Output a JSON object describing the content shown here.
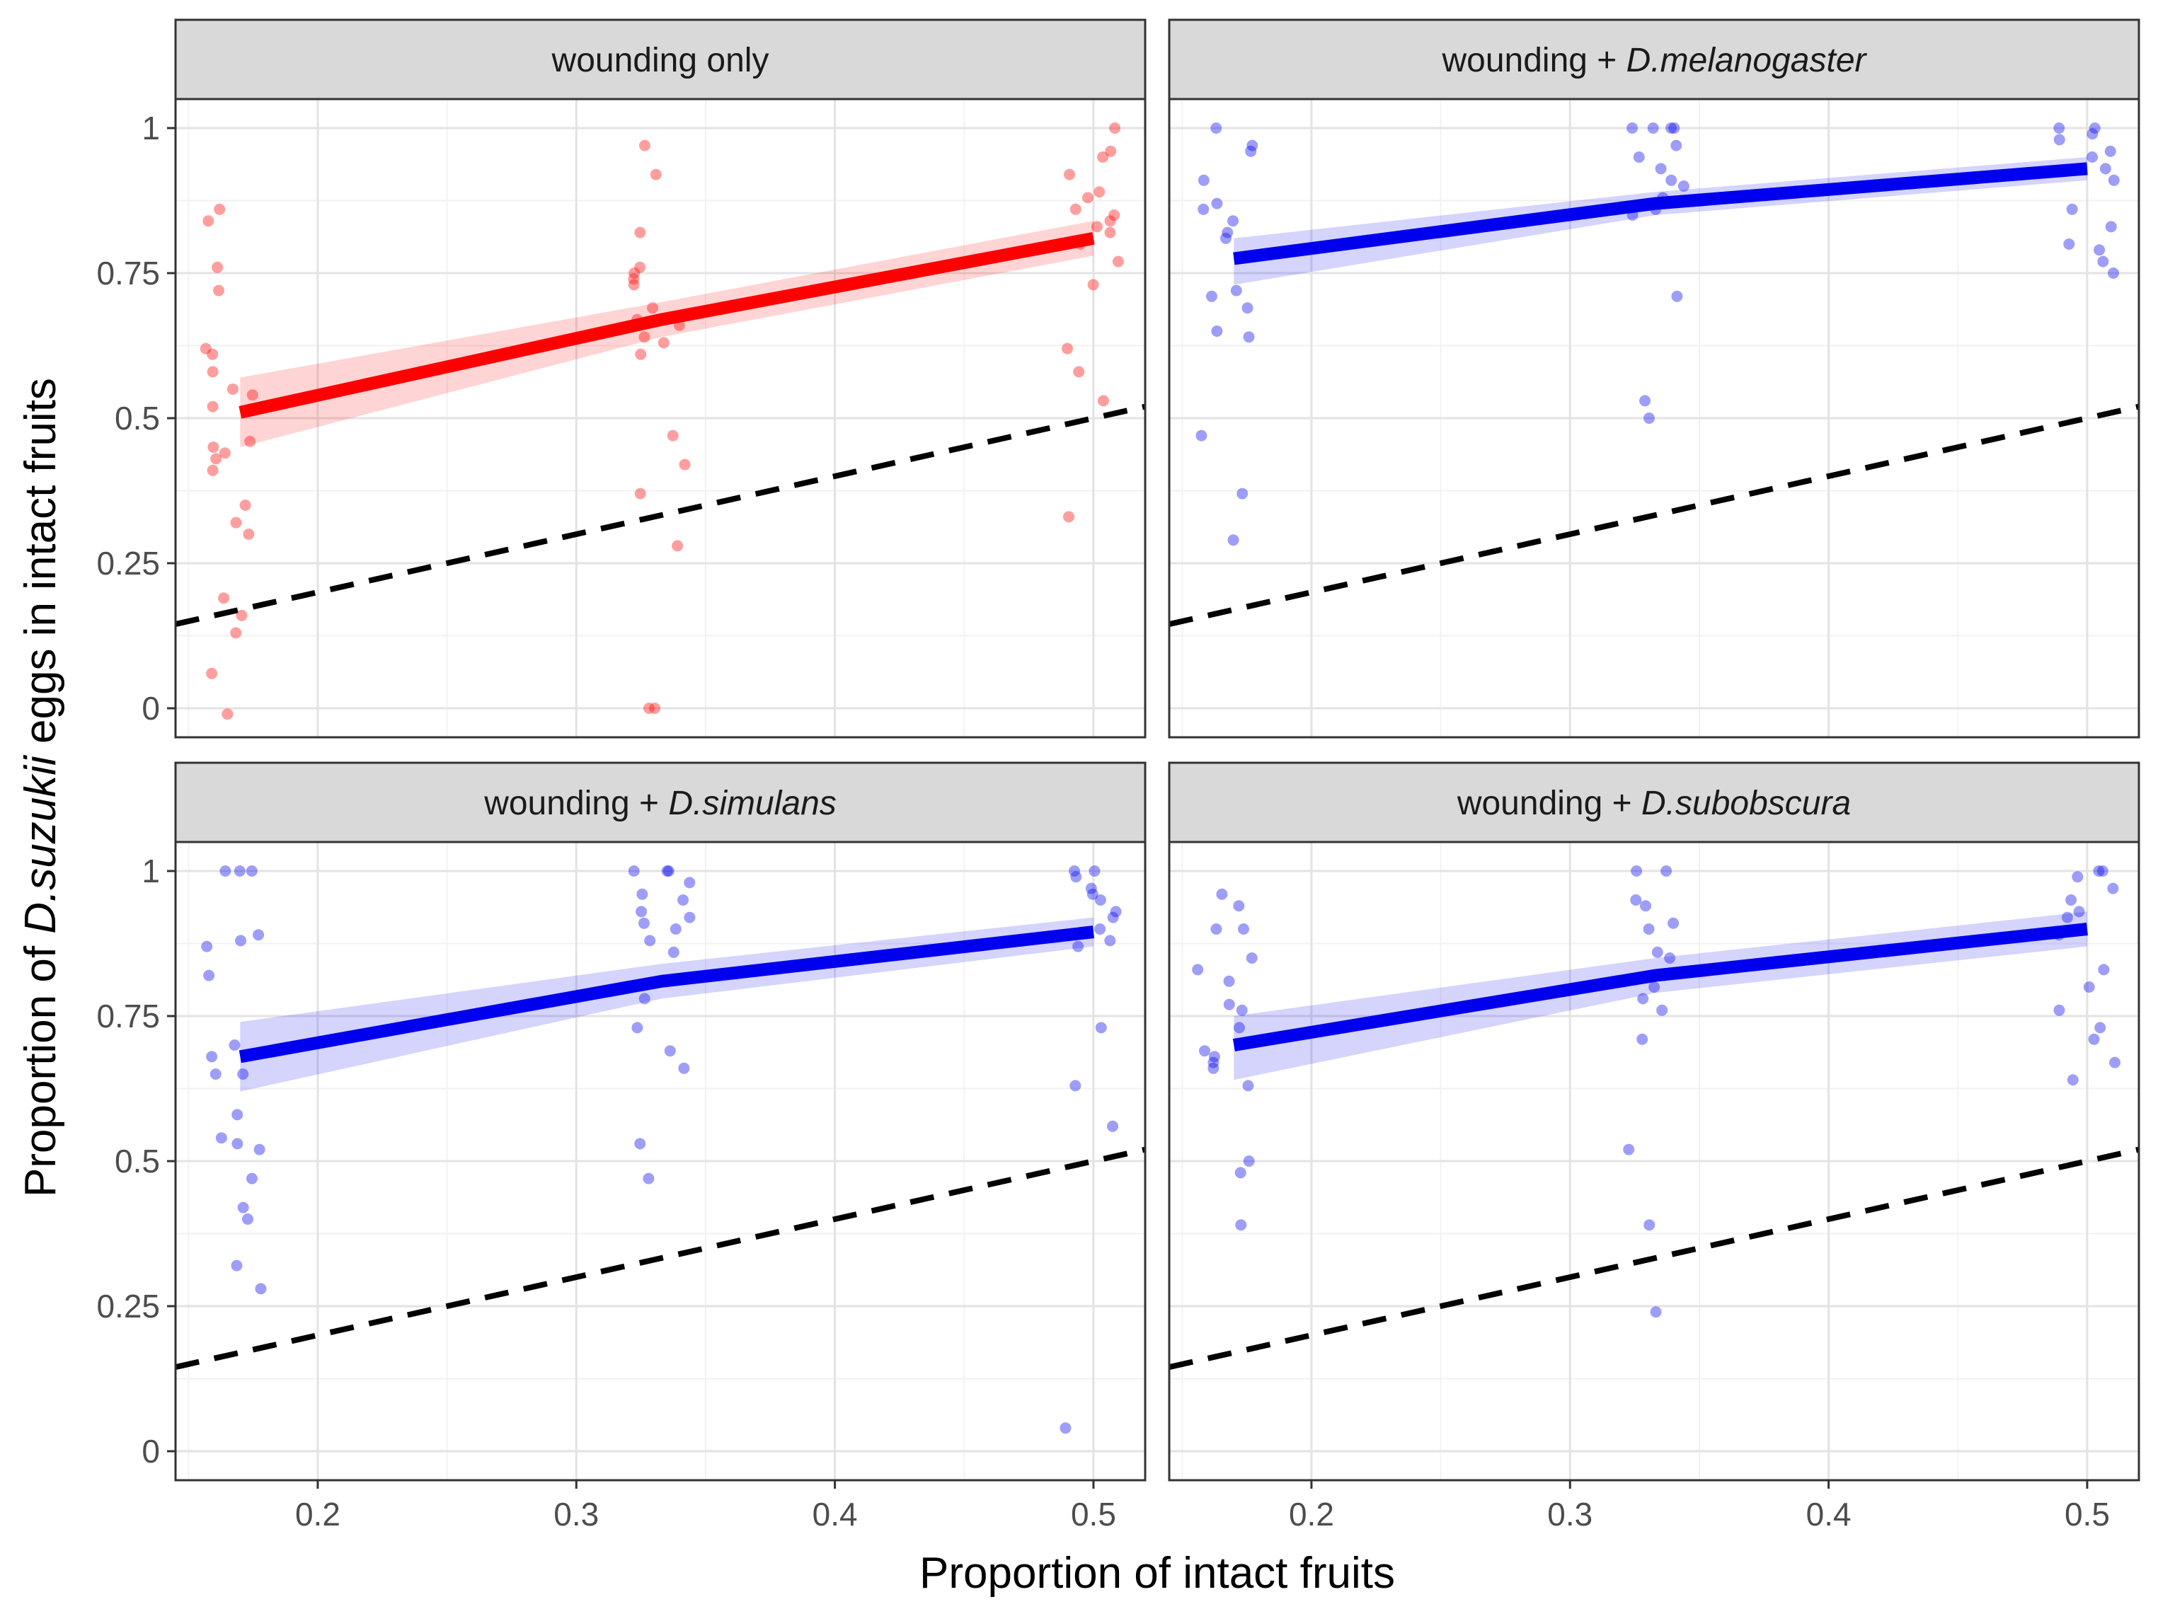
{
  "chart_data": {
    "type": "scatter",
    "facet_layout": "2x2",
    "xlabel": "Proportion of intact fruits",
    "ylabel": {
      "prefix": "Proportion of ",
      "species": "D.suzukii",
      "suffix": " eggs in intact fruits"
    },
    "xlim": [
      0.145,
      0.52
    ],
    "ylim": [
      -0.05,
      1.05
    ],
    "x_ticks": [
      0.2,
      0.3,
      0.4,
      0.5
    ],
    "x_tick_labels": [
      "0.2",
      "0.3",
      "0.4",
      "0.5"
    ],
    "y_ticks": [
      0,
      0.25,
      0.5,
      0.75,
      1
    ],
    "y_tick_labels": [
      "0",
      "0.25",
      "0.5",
      "0.75",
      "1"
    ],
    "grid": true,
    "reference_line": {
      "style": "dashed",
      "description": "y = x",
      "color": "#000000"
    },
    "panels": [
      {
        "title_plain": "wounding only",
        "title_italic": "",
        "color": "#ff0000",
        "fit_x": [
          0.17,
          0.333,
          0.5
        ],
        "fit_y": [
          0.51,
          0.67,
          0.81
        ],
        "ci_low": [
          0.45,
          0.64,
          0.78
        ],
        "ci_high": [
          0.57,
          0.7,
          0.84
        ],
        "groups": [
          {
            "x": 0.167,
            "y": [
              0.86,
              0.84,
              0.76,
              0.72,
              0.62,
              0.61,
              0.58,
              0.55,
              0.54,
              0.52,
              0.46,
              0.45,
              0.44,
              0.43,
              0.41,
              0.35,
              0.32,
              0.3,
              0.19,
              0.16,
              0.13,
              0.06,
              -0.01
            ]
          },
          {
            "x": 0.333,
            "y": [
              0.97,
              0.92,
              0.82,
              0.76,
              0.75,
              0.74,
              0.73,
              0.69,
              0.67,
              0.66,
              0.64,
              0.63,
              0.61,
              0.47,
              0.42,
              0.37,
              0.28,
              0.0,
              0.0
            ]
          },
          {
            "x": 0.5,
            "y": [
              1.0,
              0.96,
              0.95,
              0.92,
              0.89,
              0.88,
              0.86,
              0.85,
              0.84,
              0.83,
              0.82,
              0.8,
              0.77,
              0.73,
              0.62,
              0.58,
              0.53,
              0.33
            ]
          }
        ]
      },
      {
        "title_plain": "wounding + ",
        "title_italic": "D.melanogaster",
        "color": "#0000ee",
        "fit_x": [
          0.17,
          0.333,
          0.5
        ],
        "fit_y": [
          0.775,
          0.87,
          0.93
        ],
        "ci_low": [
          0.73,
          0.85,
          0.91
        ],
        "ci_high": [
          0.81,
          0.89,
          0.95
        ],
        "groups": [
          {
            "x": 0.167,
            "y": [
              1.0,
              0.97,
              0.96,
              0.91,
              0.87,
              0.86,
              0.84,
              0.82,
              0.81,
              0.72,
              0.71,
              0.69,
              0.65,
              0.64,
              0.47,
              0.37,
              0.29
            ]
          },
          {
            "x": 0.333,
            "y": [
              1.0,
              1.0,
              1.0,
              1.0,
              0.97,
              0.95,
              0.93,
              0.91,
              0.9,
              0.88,
              0.86,
              0.85,
              0.71,
              0.53,
              0.5
            ]
          },
          {
            "x": 0.5,
            "y": [
              1.0,
              1.0,
              0.99,
              0.98,
              0.96,
              0.95,
              0.93,
              0.91,
              0.86,
              0.83,
              0.8,
              0.79,
              0.77,
              0.75
            ]
          }
        ]
      },
      {
        "title_plain": "wounding + ",
        "title_italic": "D.simulans",
        "color": "#0000ee",
        "fit_x": [
          0.17,
          0.333,
          0.5
        ],
        "fit_y": [
          0.68,
          0.81,
          0.895
        ],
        "ci_low": [
          0.62,
          0.78,
          0.87
        ],
        "ci_high": [
          0.74,
          0.84,
          0.92
        ],
        "groups": [
          {
            "x": 0.167,
            "y": [
              1.0,
              1.0,
              1.0,
              0.89,
              0.88,
              0.87,
              0.82,
              0.7,
              0.68,
              0.65,
              0.65,
              0.58,
              0.54,
              0.53,
              0.52,
              0.47,
              0.42,
              0.4,
              0.32,
              0.28
            ]
          },
          {
            "x": 0.333,
            "y": [
              1.0,
              1.0,
              1.0,
              0.98,
              0.96,
              0.95,
              0.93,
              0.92,
              0.91,
              0.9,
              0.88,
              0.86,
              0.78,
              0.73,
              0.69,
              0.66,
              0.53,
              0.47
            ]
          },
          {
            "x": 0.5,
            "y": [
              1.0,
              1.0,
              0.99,
              0.97,
              0.96,
              0.95,
              0.93,
              0.92,
              0.9,
              0.88,
              0.87,
              0.73,
              0.63,
              0.56,
              0.04
            ]
          }
        ]
      },
      {
        "title_plain": "wounding + ",
        "title_italic": "D.subobscura",
        "color": "#0000ee",
        "fit_x": [
          0.17,
          0.333,
          0.5
        ],
        "fit_y": [
          0.7,
          0.82,
          0.9
        ],
        "ci_low": [
          0.64,
          0.79,
          0.87
        ],
        "ci_high": [
          0.75,
          0.85,
          0.93
        ],
        "groups": [
          {
            "x": 0.167,
            "y": [
              0.96,
              0.94,
              0.9,
              0.9,
              0.85,
              0.83,
              0.81,
              0.77,
              0.76,
              0.73,
              0.69,
              0.68,
              0.67,
              0.66,
              0.63,
              0.5,
              0.48,
              0.39
            ]
          },
          {
            "x": 0.333,
            "y": [
              1.0,
              1.0,
              0.95,
              0.94,
              0.91,
              0.9,
              0.86,
              0.85,
              0.82,
              0.8,
              0.78,
              0.76,
              0.71,
              0.52,
              0.39,
              0.24
            ]
          },
          {
            "x": 0.5,
            "y": [
              1.0,
              1.0,
              0.99,
              0.97,
              0.95,
              0.93,
              0.92,
              0.89,
              0.83,
              0.8,
              0.76,
              0.73,
              0.71,
              0.67,
              0.64
            ]
          }
        ]
      }
    ]
  }
}
